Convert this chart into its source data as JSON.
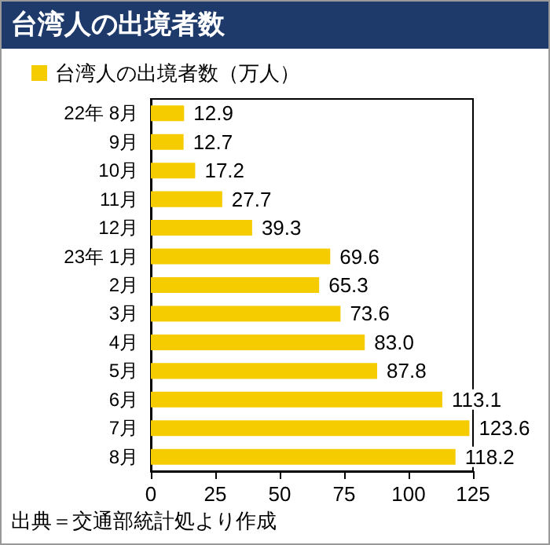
{
  "chart_data": {
    "type": "bar",
    "orientation": "horizontal",
    "title": "台湾人の出境者数",
    "categories": [
      "22年 8月",
      "9月",
      "10月",
      "11月",
      "12月",
      "23年 1月",
      "2月",
      "3月",
      "4月",
      "5月",
      "6月",
      "7月",
      "8月"
    ],
    "series": [
      {
        "name": "台湾人の出境者数（万人）",
        "color": "#f5cc00",
        "values": [
          12.9,
          12.7,
          17.2,
          27.7,
          39.3,
          69.6,
          65.3,
          73.6,
          83.0,
          87.8,
          113.1,
          123.6,
          118.2
        ],
        "value_labels": [
          "12.9",
          "12.7",
          "17.2",
          "27.7",
          "39.3",
          "69.6",
          "65.3",
          "73.6",
          "83.0",
          "87.8",
          "113.1",
          "123.6",
          "118.2"
        ]
      }
    ],
    "xlim": [
      0,
      125
    ],
    "xticks": [
      0,
      25,
      50,
      75,
      100,
      125
    ],
    "grid": false,
    "legend": "top left",
    "annotations": [
      "出典＝交通部統計処より作成"
    ]
  }
}
